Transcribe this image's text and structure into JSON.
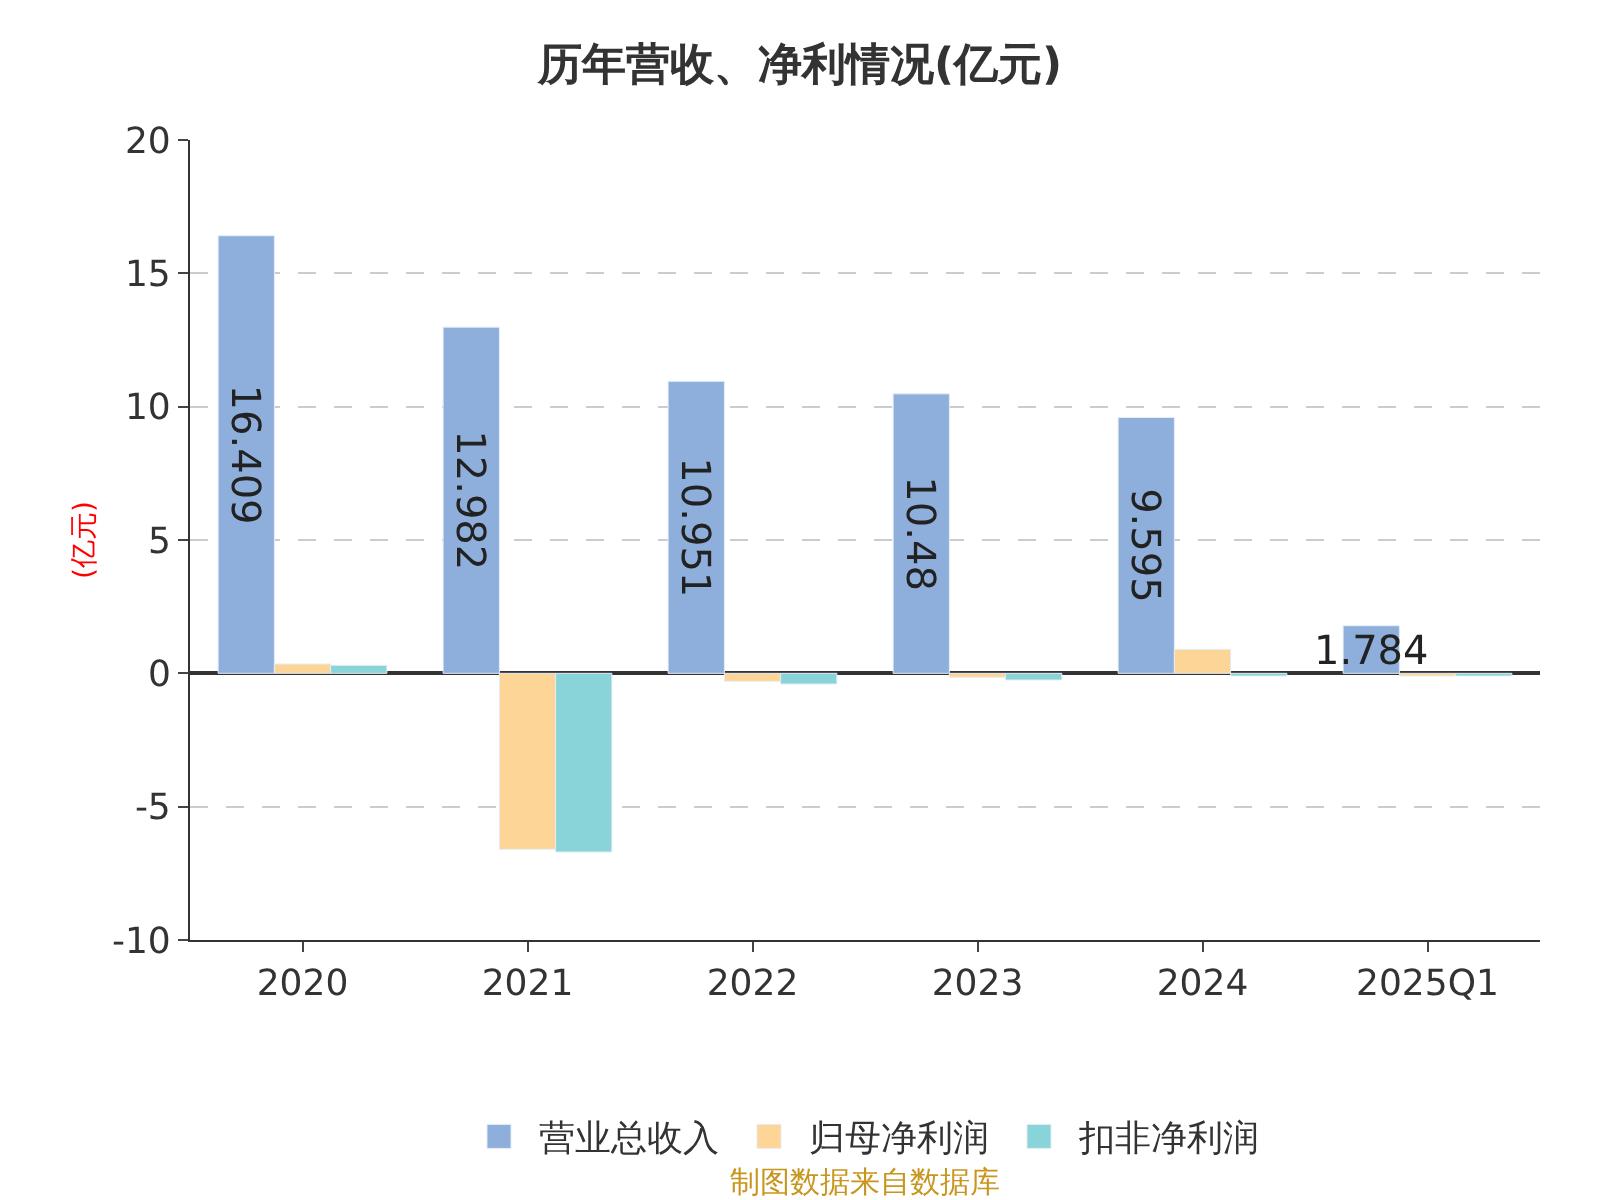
{
  "chart_data": {
    "type": "bar",
    "title": "历年营收、净利情况(亿元)",
    "ylabel": "(亿元)",
    "categories": [
      "2020",
      "2021",
      "2022",
      "2023",
      "2024",
      "2025Q1"
    ],
    "series": [
      {
        "name": "营业总收入",
        "color": "#8eaedc",
        "values": [
          16.409,
          12.982,
          10.951,
          10.48,
          9.595,
          1.784
        ],
        "value_labels": [
          "16.409",
          "12.982",
          "10.951",
          "10.48",
          "9.595",
          "1.784"
        ]
      },
      {
        "name": "归母净利润",
        "color": "#fdd596",
        "values": [
          0.35,
          -6.6,
          -0.3,
          -0.15,
          0.9,
          -0.1
        ]
      },
      {
        "name": "扣非净利润",
        "color": "#88d4d8",
        "values": [
          0.3,
          -6.7,
          -0.4,
          -0.25,
          -0.1,
          -0.1
        ]
      }
    ],
    "ylim": [
      -10,
      20
    ],
    "yticks": [
      -10,
      -5,
      0,
      5,
      10,
      15,
      20
    ],
    "grid": "y",
    "legend": "bottom",
    "annotations": [
      "制图数据来自数据库"
    ]
  }
}
